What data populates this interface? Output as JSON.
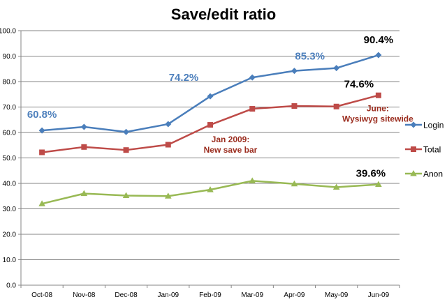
{
  "chart_data": {
    "type": "line",
    "title": "Save/edit ratio",
    "xlabel": "",
    "ylabel": "",
    "ylim": [
      0,
      100
    ],
    "yticks": [
      "0.0",
      "10.0",
      "20.0",
      "30.0",
      "40.0",
      "50.0",
      "60.0",
      "70.0",
      "80.0",
      "90.0",
      "100.0"
    ],
    "grid": true,
    "legend_position": "right",
    "categories": [
      "Oct-08",
      "Nov-08",
      "Dec-08",
      "Jan-09",
      "Feb-09",
      "Mar-09",
      "Apr-09",
      "May-09",
      "Jun-09"
    ],
    "series": [
      {
        "name": "Login",
        "color": "#4a7ebb",
        "marker": "diamond",
        "values": [
          60.8,
          62.2,
          60.2,
          63.3,
          74.2,
          81.6,
          84.2,
          85.3,
          90.4
        ]
      },
      {
        "name": "Total",
        "color": "#be4b48",
        "marker": "square",
        "values": [
          52.2,
          54.3,
          53.1,
          55.2,
          63.0,
          69.3,
          70.4,
          70.2,
          74.6
        ]
      },
      {
        "name": "Anon",
        "color": "#98b954",
        "marker": "triangle",
        "values": [
          32.0,
          36.0,
          35.2,
          35.0,
          37.5,
          41.0,
          39.8,
          38.5,
          39.6
        ]
      }
    ],
    "annotations": [
      {
        "text": "60.8%",
        "color": "#4f81bd",
        "category": "Oct-08",
        "value": 60.8,
        "size": 15
      },
      {
        "text": "74.2%",
        "color": "#4f81bd",
        "category": "Feb-09",
        "value": 74.2,
        "size": 15
      },
      {
        "text": "85.3%",
        "color": "#4f81bd",
        "category": "May-09",
        "value": 85.3,
        "size": 15
      },
      {
        "text": "90.4%",
        "color": "#000000",
        "category": "Jun-09",
        "value": 90.4,
        "size": 15
      },
      {
        "text": "74.6%",
        "color": "#000000",
        "category": "Jun-09",
        "value": 74.6,
        "size": 15
      },
      {
        "text": "39.6%",
        "color": "#000000",
        "category": "Jun-09",
        "value": 39.6,
        "size": 15
      },
      {
        "lines": [
          "Jan 2009:",
          "New save bar"
        ],
        "color": "#9b2d1f",
        "category": "Feb-09",
        "value": 63.0,
        "size": 12
      },
      {
        "lines": [
          "June:",
          "Wysiwyg sitewide"
        ],
        "color": "#9b2d1f",
        "category": "Jun-09",
        "value": 74.6,
        "size": 12
      }
    ]
  }
}
